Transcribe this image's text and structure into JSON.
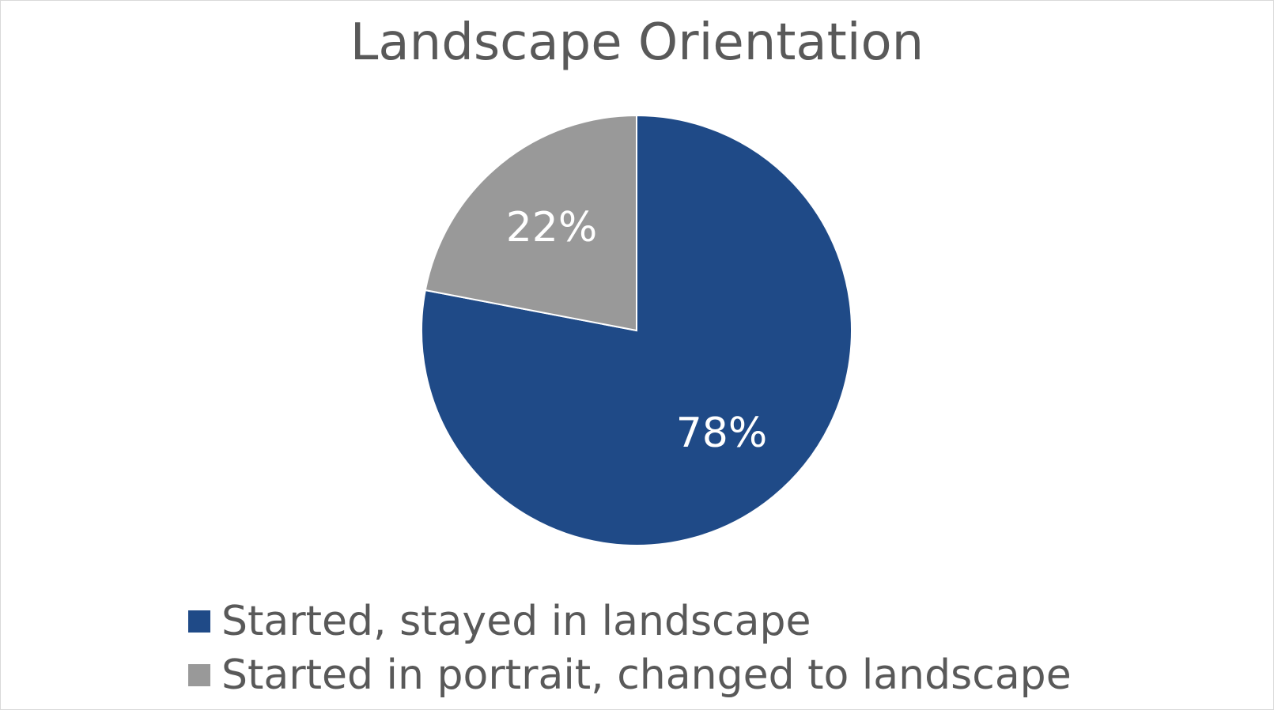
{
  "chart_data": {
    "type": "pie",
    "title": "Landscape Orientation",
    "series": [
      {
        "name": "Started, stayed in landscape",
        "value": 78,
        "label": "78%",
        "color": "#1F4A87"
      },
      {
        "name": "Started in portrait, changed to landscape",
        "value": 22,
        "label": "22%",
        "color": "#999999"
      }
    ],
    "start_angle": "12 o'clock, clockwise",
    "legend_position": "bottom"
  }
}
